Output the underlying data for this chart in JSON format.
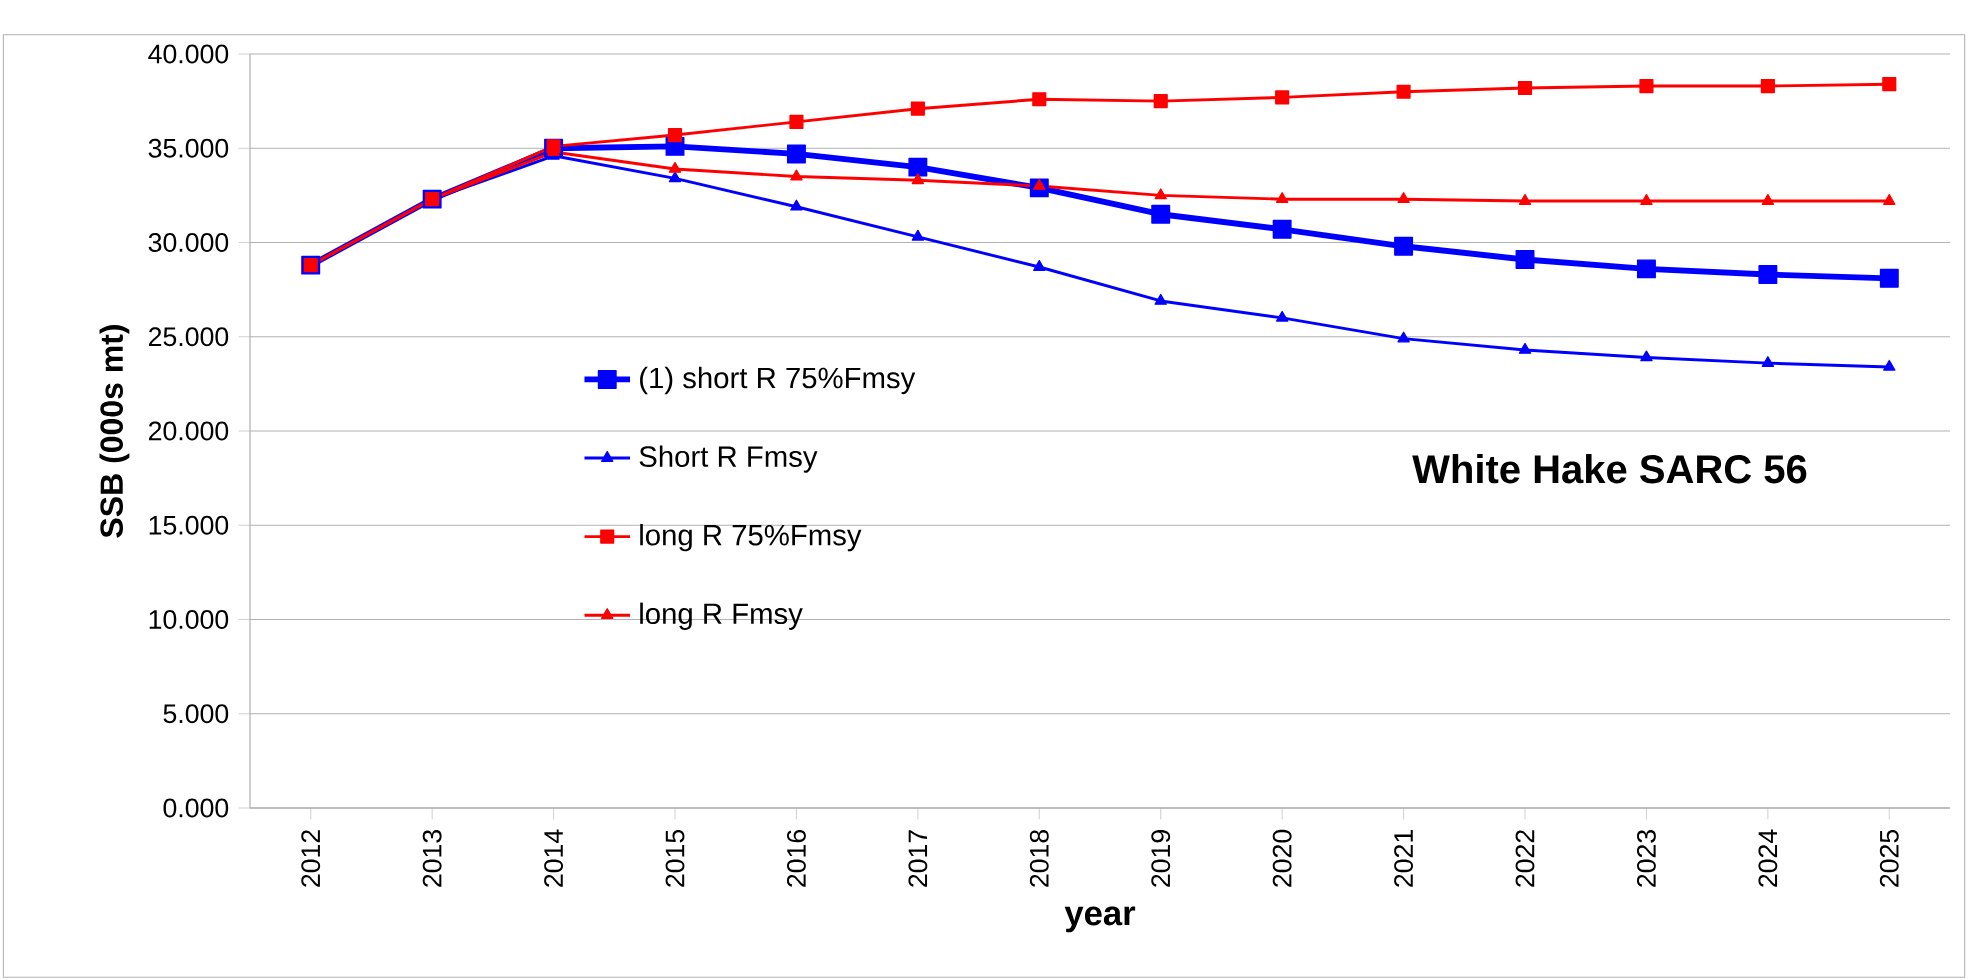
{
  "chart_data": {
    "type": "line",
    "categories": [
      "2012",
      "2013",
      "2014",
      "2015",
      "2016",
      "2017",
      "2018",
      "2019",
      "2020",
      "2021",
      "2022",
      "2023",
      "2024",
      "2025"
    ],
    "series": [
      {
        "name": "(1) short R 75%Fmsy",
        "color": "#0000ff",
        "marker": "square",
        "values": [
          28.8,
          32.3,
          35.0,
          35.1,
          34.7,
          34.0,
          32.9,
          31.5,
          30.7,
          29.8,
          29.1,
          28.6,
          28.3,
          28.1
        ]
      },
      {
        "name": "Short R Fmsy",
        "color": "#0000ff",
        "marker": "triangle",
        "values": [
          28.8,
          32.3,
          34.6,
          33.4,
          31.9,
          30.3,
          28.7,
          26.9,
          26.0,
          24.9,
          24.3,
          23.9,
          23.6,
          23.4
        ]
      },
      {
        "name": "long R 75%Fmsy",
        "color": "#ff0000",
        "marker": "square",
        "values": [
          28.8,
          32.3,
          35.1,
          35.7,
          36.4,
          37.1,
          37.6,
          37.5,
          37.7,
          38.0,
          38.2,
          38.3,
          38.3,
          38.4
        ]
      },
      {
        "name": "long R Fmsy",
        "color": "#ff0000",
        "marker": "triangle",
        "values": [
          28.8,
          32.3,
          34.8,
          33.9,
          33.5,
          33.3,
          33.0,
          32.5,
          32.3,
          32.3,
          32.2,
          32.2,
          32.2,
          32.2
        ]
      }
    ],
    "xlabel": "year",
    "ylabel": "SSB (000s mt)",
    "ylim": [
      0,
      40
    ],
    "yticks": [
      {
        "value": 0,
        "label": "0.000"
      },
      {
        "value": 5,
        "label": "5.000"
      },
      {
        "value": 10,
        "label": "10.000"
      },
      {
        "value": 15,
        "label": "15.000"
      },
      {
        "value": 20,
        "label": "20.000"
      },
      {
        "value": 25,
        "label": "25.000"
      },
      {
        "value": 30,
        "label": "30.000"
      },
      {
        "value": 35,
        "label": "35.000"
      },
      {
        "value": 40,
        "label": "40.000"
      }
    ],
    "grid": "y",
    "legend": "left",
    "annotations": [
      "White Hake SARC 56"
    ]
  }
}
